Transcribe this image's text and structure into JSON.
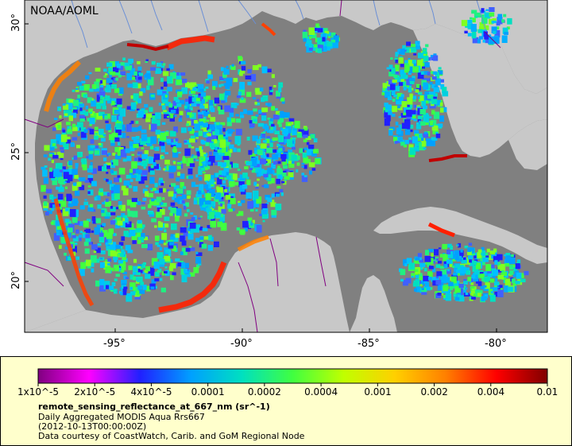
{
  "map": {
    "credit_label": "NOAA/AOML",
    "latitude_labels": [
      "30°",
      "25°",
      "20°"
    ],
    "longitude_labels": [
      "-95°",
      "-90°",
      "-85°",
      "-80°"
    ],
    "colors": {
      "land": "#c8c8c8",
      "no_data_ocean": "#808080",
      "coast_border": "#800080",
      "river": "#6a8fd6"
    }
  },
  "legend": {
    "colorbar_ticks": [
      "1x10^-5",
      "2x10^-5",
      "4x10^-5",
      "0.0001",
      "0.0002",
      "0.0004",
      "0.001",
      "0.002",
      "0.004",
      "0.01"
    ],
    "colorbar_colors": [
      "#800080",
      "#ff00ff",
      "#2020ff",
      "#00a0ff",
      "#00e0c0",
      "#40ff40",
      "#c0ff00",
      "#ffd000",
      "#ff8000",
      "#ff0000",
      "#800000"
    ],
    "title": "remote_sensing_reflectance_at_667_nm (sr^-1)",
    "line1": "Daily Aggregated MODIS Aqua Rrs667",
    "line2": "(2012-10-13T00:00:00Z)",
    "line3": "Data courtesy of CoastWatch, Carib. and GoM Regional Node",
    "background": "#ffffcc"
  }
}
